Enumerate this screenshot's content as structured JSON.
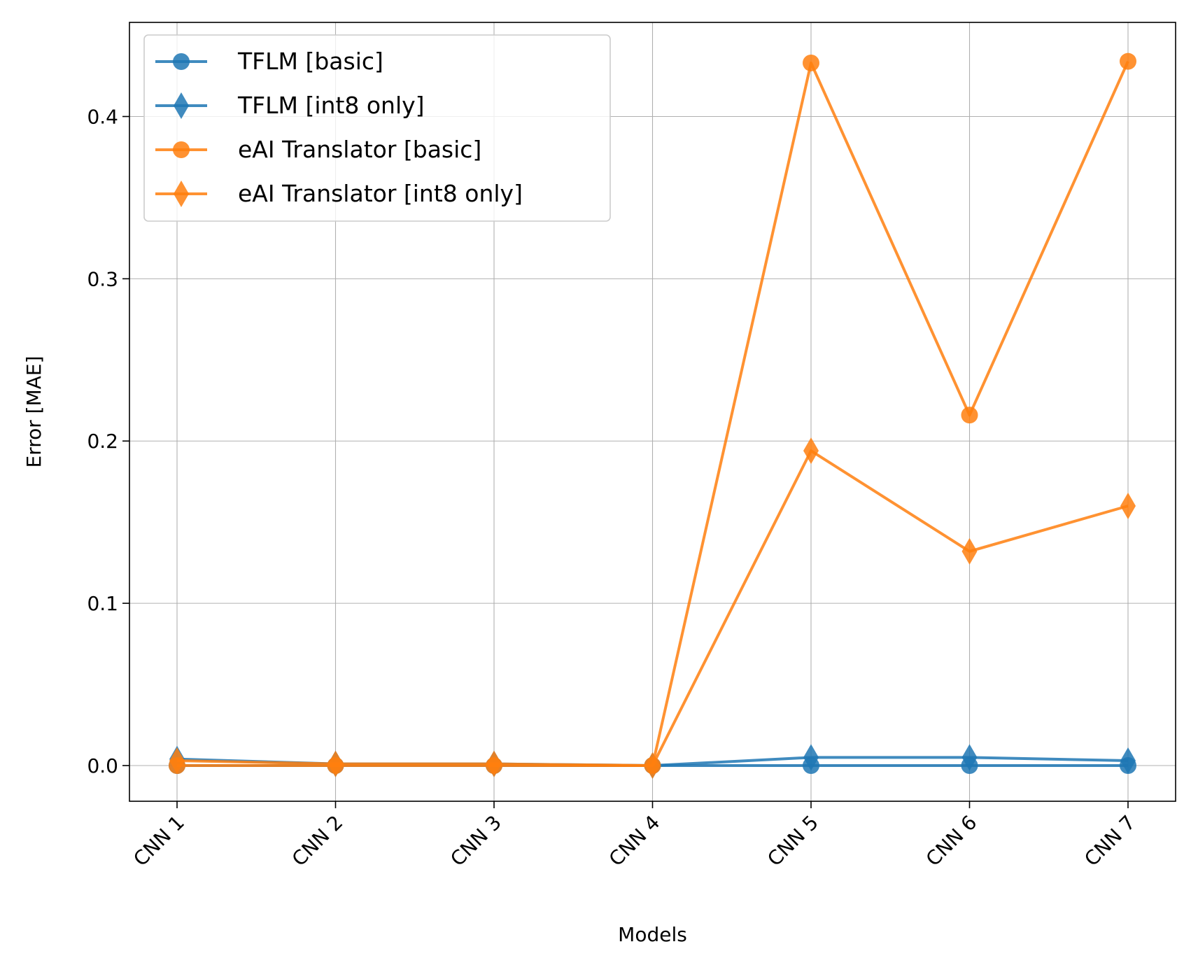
{
  "chart_data": {
    "type": "line",
    "title": "",
    "xlabel": "Models",
    "ylabel": "Error [MAE]",
    "categories": [
      "CNN 1",
      "CNN 2",
      "CNN 3",
      "CNN 4",
      "CNN 5",
      "CNN 6",
      "CNN 7"
    ],
    "ylim": [
      -0.022,
      0.458
    ],
    "yticks": [
      0.0,
      0.1,
      0.2,
      0.3,
      0.4
    ],
    "ytick_labels": [
      "0.0",
      "0.1",
      "0.2",
      "0.3",
      "0.4"
    ],
    "grid": true,
    "legend_position": "upper-left",
    "series": [
      {
        "name": "TFLM [basic]",
        "color": "#1f77b4",
        "marker": "circle",
        "values": [
          0.0,
          0.0,
          0.0,
          0.0,
          0.0,
          0.0,
          0.0
        ]
      },
      {
        "name": "TFLM [int8 only]",
        "color": "#1f77b4",
        "marker": "diamond",
        "values": [
          0.004,
          0.001,
          0.001,
          0.0,
          0.005,
          0.005,
          0.003
        ]
      },
      {
        "name": "eAI Translator [basic]",
        "color": "#ff7f0e",
        "marker": "circle",
        "values": [
          0.0,
          0.0,
          0.0,
          0.0,
          0.433,
          0.216,
          0.434
        ]
      },
      {
        "name": "eAI Translator [int8 only]",
        "color": "#ff7f0e",
        "marker": "diamond",
        "values": [
          0.003,
          0.001,
          0.001,
          0.0,
          0.194,
          0.132,
          0.16
        ]
      }
    ]
  }
}
